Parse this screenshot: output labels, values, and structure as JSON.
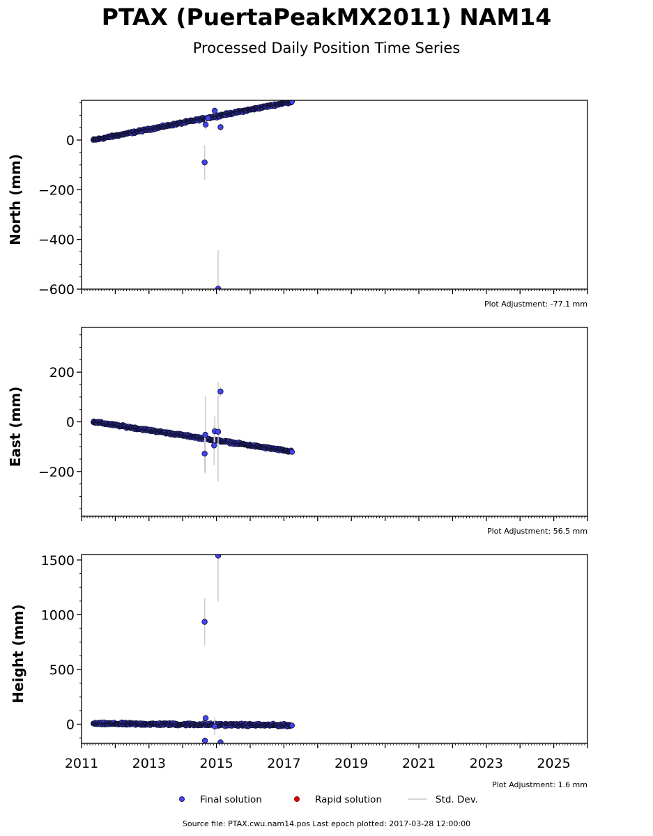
{
  "title": "PTAX (PuertaPeakMX2011) NAM14",
  "subtitle": "Processed Daily Position Time Series",
  "source_line": "Source file: PTAX.cwu.nam14.pos  Last epoch plotted: 2017-03-28 12:00:00",
  "colors": {
    "final": "#4444ee",
    "final_edge": "#111133",
    "rapid": "#dd0000",
    "stddev": "#cccccc"
  },
  "legend": {
    "final": "Final solution",
    "rapid": "Rapid solution",
    "stddev": "Std. Dev."
  },
  "chart_data": [
    {
      "type": "scatter",
      "ylabel": "North (mm)",
      "adjustment": "Plot Adjustment: -77.1 mm",
      "xlim": [
        2011,
        2026
      ],
      "ylim": [
        -600,
        160
      ],
      "yticks": [
        0,
        -200,
        -400,
        -600
      ],
      "yticklabels": [
        "0",
        "−200",
        "−400",
        "−600"
      ],
      "trend": {
        "x": [
          2011.35,
          2017.24
        ],
        "y": [
          0,
          155
        ],
        "noise": 3
      },
      "outliers": [
        {
          "x": 2014.65,
          "y": -90,
          "err": 70
        },
        {
          "x": 2014.68,
          "y": 62,
          "err": 20
        },
        {
          "x": 2014.95,
          "y": 118,
          "err": 15
        },
        {
          "x": 2015.05,
          "y": -598,
          "err": 155
        },
        {
          "x": 2015.12,
          "y": 52,
          "err": 15
        },
        {
          "x": 2014.75,
          "y": 88,
          "err": 10
        }
      ]
    },
    {
      "type": "scatter",
      "ylabel": "East (mm)",
      "adjustment": "Plot Adjustment: 56.5 mm",
      "xlim": [
        2011,
        2026
      ],
      "ylim": [
        -380,
        380
      ],
      "yticks": [
        200,
        0,
        -200
      ],
      "yticklabels": [
        "200",
        "0",
        "−200"
      ],
      "trend": {
        "x": [
          2011.35,
          2017.24
        ],
        "y": [
          0,
          -120
        ],
        "noise": 3
      },
      "outliers": [
        {
          "x": 2014.65,
          "y": -128,
          "err": 75
        },
        {
          "x": 2014.67,
          "y": -52,
          "err": 155
        },
        {
          "x": 2014.93,
          "y": -95,
          "err": 80
        },
        {
          "x": 2014.95,
          "y": -38,
          "err": 60
        },
        {
          "x": 2015.05,
          "y": -40,
          "err": 200
        },
        {
          "x": 2015.12,
          "y": 122,
          "err": 20
        }
      ]
    },
    {
      "type": "scatter",
      "ylabel": "Height (mm)",
      "adjustment": "Plot Adjustment: 1.6 mm",
      "xlim": [
        2011,
        2026
      ],
      "ylim": [
        -175,
        1550
      ],
      "yticks": [
        1500,
        1000,
        500,
        0
      ],
      "yticklabels": [
        "1500",
        "1000",
        "500",
        "0"
      ],
      "xticks": [
        2011,
        2013,
        2015,
        2017,
        2019,
        2021,
        2023,
        2025
      ],
      "xticklabels": [
        "2011",
        "2013",
        "2015",
        "2017",
        "2019",
        "2021",
        "2023",
        "2025"
      ],
      "trend": {
        "x": [
          2011.35,
          2017.24
        ],
        "y": [
          5,
          -10
        ],
        "noise": 8
      },
      "outliers": [
        {
          "x": 2014.65,
          "y": 935,
          "err": 215
        },
        {
          "x": 2014.68,
          "y": 55,
          "err": 30
        },
        {
          "x": 2014.66,
          "y": -150,
          "err": 30
        },
        {
          "x": 2015.05,
          "y": 1540,
          "err": 420
        },
        {
          "x": 2015.12,
          "y": -165,
          "err": 25
        },
        {
          "x": 2014.95,
          "y": -20,
          "err": 80
        }
      ]
    }
  ]
}
